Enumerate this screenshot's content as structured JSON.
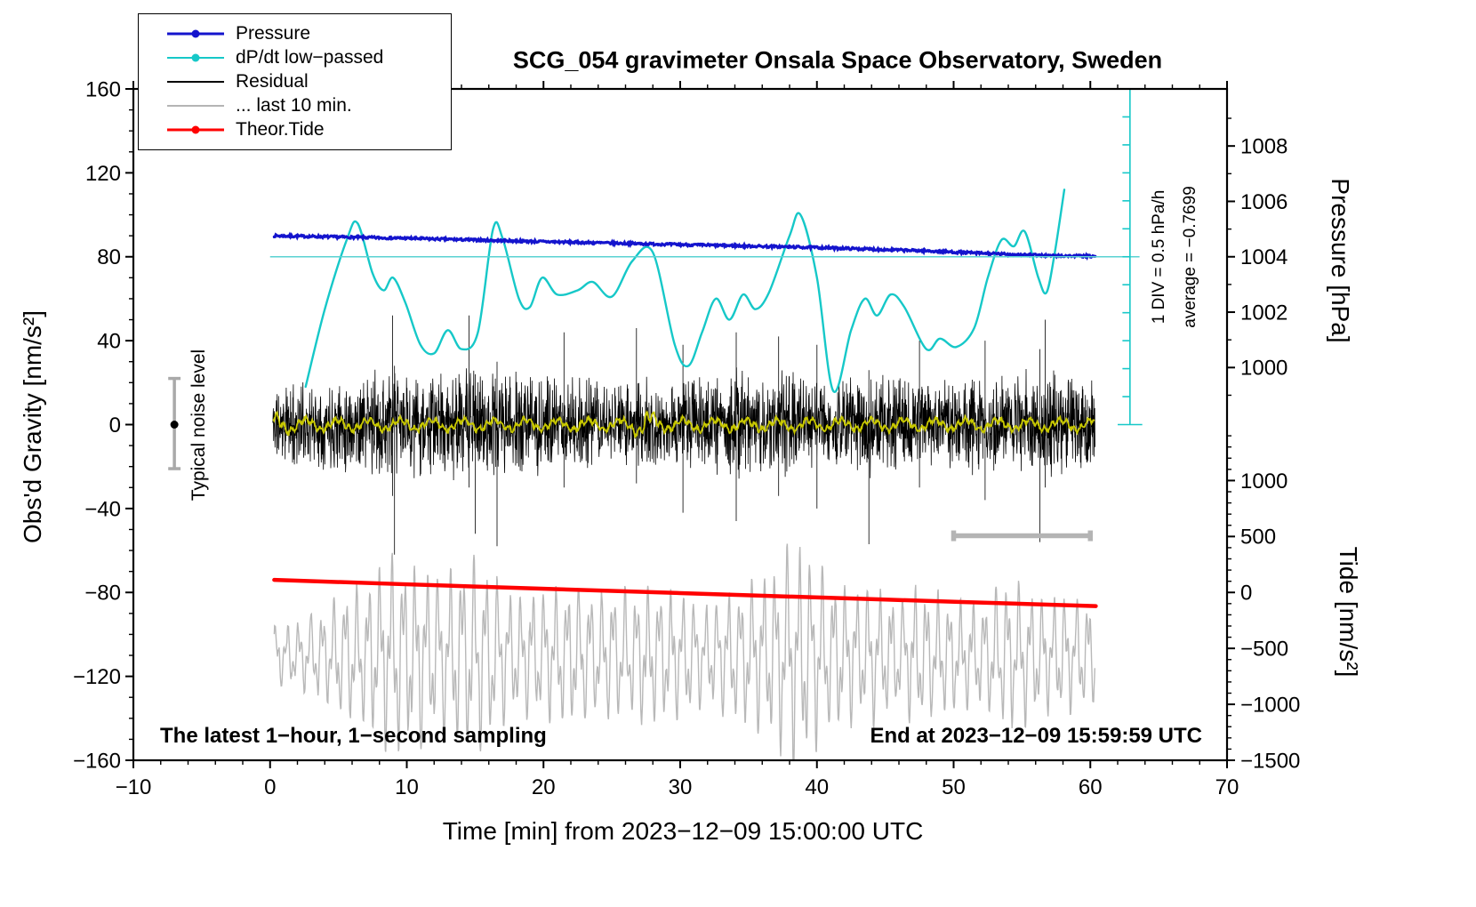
{
  "chart_data": {
    "type": "line",
    "title": "SCG_054 gravimeter Onsala Space Observatory, Sweden",
    "xlabel": "Time [min] from 2023−12−09 15:00:00 UTC",
    "ylabel_left": "Obs'd Gravity [nm/s²]",
    "ylabel_right_top": "Pressure [hPa]",
    "ylabel_right_bottom": "Tide [nm/s²]",
    "xlim": [
      -10,
      70
    ],
    "ylim": [
      -160,
      160
    ],
    "grid": false,
    "legend_position": "top-left",
    "x_ticks": [
      {
        "v": -10,
        "label": "−10"
      },
      {
        "v": 0,
        "label": "0"
      },
      {
        "v": 10,
        "label": "10"
      },
      {
        "v": 20,
        "label": "20"
      },
      {
        "v": 30,
        "label": "30"
      },
      {
        "v": 40,
        "label": "40"
      },
      {
        "v": 50,
        "label": "50"
      },
      {
        "v": 60,
        "label": "60"
      },
      {
        "v": 70,
        "label": "70"
      }
    ],
    "x_minor_step": 2,
    "y_ticks_left": [
      {
        "v": -160,
        "label": "−160"
      },
      {
        "v": -120,
        "label": "−120"
      },
      {
        "v": -80,
        "label": "−80"
      },
      {
        "v": -40,
        "label": "−40"
      },
      {
        "v": 0,
        "label": "0"
      },
      {
        "v": 40,
        "label": "40"
      },
      {
        "v": 80,
        "label": "80"
      },
      {
        "v": 120,
        "label": "120"
      },
      {
        "v": 160,
        "label": "160"
      }
    ],
    "y_minor_step": 10,
    "pressure_axis": {
      "ref_p": 1004,
      "ref_g": 80,
      "g_per_hpa": 13.2,
      "majors": [
        {
          "v": 1008,
          "label": "1008"
        },
        {
          "v": 1006,
          "label": "1006"
        },
        {
          "v": 1004,
          "label": "1004"
        },
        {
          "v": 1002,
          "label": "1002"
        },
        {
          "v": 1000,
          "label": "1000"
        }
      ],
      "minors": [
        1009,
        1007,
        1005,
        1003,
        1001,
        999
      ]
    },
    "tide_axis": {
      "ref_t": 0,
      "ref_g": -80,
      "g_per_unit": 0.0533333,
      "majors": [
        {
          "v": 1000,
          "label": "1000"
        },
        {
          "v": 500,
          "label": "500"
        },
        {
          "v": 0,
          "label": "0"
        },
        {
          "v": -500,
          "label": "−500"
        },
        {
          "v": -1000,
          "label": "−1000"
        },
        {
          "v": -1500,
          "label": "−1500"
        }
      ],
      "minors": [
        1400,
        1300,
        1200,
        1100,
        900,
        800,
        700,
        600,
        400,
        300,
        200,
        100,
        -100,
        -200,
        -300,
        -400,
        -600,
        -700,
        -800,
        -900,
        -1100,
        -1200,
        -1300,
        -1400
      ]
    },
    "legend": [
      {
        "label": "Pressure",
        "color": "#1414cd",
        "width": 3.5,
        "marker": true
      },
      {
        "label": "dP/dt low−passed",
        "color": "#16c8c8",
        "width": 2.4,
        "marker": true
      },
      {
        "label": "Residual",
        "color": "#000000",
        "width": 2.6,
        "marker": false
      },
      {
        "label": "... last 10 min.",
        "color": "#b4b4b4",
        "width": 2.6,
        "marker": false
      },
      {
        "label": "Theor.Tide",
        "color": "#ff0000",
        "width": 3.5,
        "marker": true
      }
    ],
    "annotations": {
      "noise_label": "Typical noise level",
      "div_label": "1 DIV = 0.5 hPa/h",
      "average_label": "average = −0.7699",
      "note_left": "The latest 1−hour, 1−second sampling",
      "note_right": "End at 2023−12−09 15:59:59 UTC"
    },
    "series": {
      "baseline80": {
        "y": 80,
        "x0": 0,
        "x1": 63.6,
        "color": "#5ad2d2",
        "width": 1.4
      },
      "ruler": {
        "x": 62.9,
        "g0": 0,
        "g1": 160,
        "divisions": 12,
        "tick_len": 0.55,
        "cap_half": 0.9,
        "color": "#16c8c8",
        "width": 1.6
      },
      "pressure": {
        "color": "#1414cd",
        "width": 3.2,
        "seed": 7,
        "jitter": 1.1,
        "step": 0.06,
        "keypoints": [
          [
            0.3,
            90
          ],
          [
            10,
            88.8
          ],
          [
            20,
            87.2
          ],
          [
            30,
            85.8
          ],
          [
            40,
            84.4
          ],
          [
            48,
            82.8
          ],
          [
            53,
            81.4
          ],
          [
            57,
            80.5
          ],
          [
            60.4,
            80.2
          ]
        ]
      },
      "dpdt": {
        "color": "#16c8c8",
        "width": 2.4,
        "keypoints": [
          [
            2.6,
            18
          ],
          [
            4,
            55
          ],
          [
            5.6,
            88
          ],
          [
            6.4,
            96
          ],
          [
            7.5,
            72
          ],
          [
            8.3,
            64
          ],
          [
            9,
            70
          ],
          [
            9.9,
            58
          ],
          [
            11,
            38
          ],
          [
            12,
            34
          ],
          [
            13,
            45
          ],
          [
            14,
            36
          ],
          [
            15.2,
            44
          ],
          [
            16.3,
            93
          ],
          [
            17,
            89
          ],
          [
            18.2,
            60
          ],
          [
            19,
            56
          ],
          [
            19.9,
            70
          ],
          [
            21,
            62
          ],
          [
            22.5,
            64
          ],
          [
            23.6,
            68
          ],
          [
            25,
            61
          ],
          [
            26.5,
            78
          ],
          [
            28,
            82
          ],
          [
            29.6,
            38
          ],
          [
            30.6,
            28
          ],
          [
            31.6,
            44
          ],
          [
            32.6,
            60
          ],
          [
            33.6,
            50
          ],
          [
            34.6,
            62
          ],
          [
            35.5,
            55
          ],
          [
            36.5,
            63
          ],
          [
            38,
            90
          ],
          [
            38.8,
            100
          ],
          [
            40,
            70
          ],
          [
            41.2,
            16
          ],
          [
            42.5,
            45
          ],
          [
            43.5,
            60
          ],
          [
            44.4,
            52
          ],
          [
            45.4,
            62
          ],
          [
            46.4,
            56
          ],
          [
            48,
            36
          ],
          [
            49,
            41
          ],
          [
            50.2,
            37
          ],
          [
            51.5,
            46
          ],
          [
            52.5,
            70
          ],
          [
            53.5,
            88
          ],
          [
            54.4,
            85
          ],
          [
            55.2,
            92
          ],
          [
            56.2,
            70
          ],
          [
            56.8,
            63
          ],
          [
            57.4,
            82
          ],
          [
            58.1,
            112
          ]
        ]
      },
      "residual": {
        "color": "#000000",
        "width": 0.8,
        "seed": 11,
        "step": 0.02,
        "x0": 0.2,
        "x1": 60.35,
        "envelope": [
          [
            0.3,
            16
          ],
          [
            3,
            18
          ],
          [
            6,
            20
          ],
          [
            9,
            24
          ],
          [
            11,
            20
          ],
          [
            13,
            22
          ],
          [
            15,
            24
          ],
          [
            17,
            22
          ],
          [
            20,
            20
          ],
          [
            22,
            22
          ],
          [
            25,
            18
          ],
          [
            27,
            21
          ],
          [
            29,
            18
          ],
          [
            32,
            20
          ],
          [
            34,
            23
          ],
          [
            36,
            20
          ],
          [
            39,
            22
          ],
          [
            41,
            18
          ],
          [
            44,
            21
          ],
          [
            46,
            20
          ],
          [
            49,
            18
          ],
          [
            52,
            21
          ],
          [
            54,
            20
          ],
          [
            56,
            24
          ],
          [
            58,
            22
          ],
          [
            60.3,
            19
          ]
        ],
        "spikes": [
          {
            "x": 8.95,
            "hi": 52,
            "lo": -34
          },
          {
            "x": 9.1,
            "hi": 28,
            "lo": -62
          },
          {
            "x": 14.55,
            "hi": 52,
            "lo": -30
          },
          {
            "x": 15.0,
            "hi": 24,
            "lo": -52
          },
          {
            "x": 16.6,
            "hi": 30,
            "lo": -58
          },
          {
            "x": 21.5,
            "hi": 44,
            "lo": -30
          },
          {
            "x": 26.8,
            "hi": 46,
            "lo": -28
          },
          {
            "x": 30.2,
            "hi": 38,
            "lo": -42
          },
          {
            "x": 34.1,
            "hi": 44,
            "lo": -46
          },
          {
            "x": 37.2,
            "hi": 42,
            "lo": -34
          },
          {
            "x": 40.0,
            "hi": 38,
            "lo": -40
          },
          {
            "x": 43.8,
            "hi": 26,
            "lo": -57
          },
          {
            "x": 47.5,
            "hi": 40,
            "lo": -30
          },
          {
            "x": 52.3,
            "hi": 40,
            "lo": -36
          },
          {
            "x": 56.3,
            "hi": 36,
            "lo": -56
          },
          {
            "x": 56.7,
            "hi": 50,
            "lo": -30
          }
        ]
      },
      "lowpass": {
        "color": "#c8c800",
        "width": 1.8,
        "seed": 5,
        "step": 0.04,
        "x0": 0.2,
        "x1": 60.35,
        "base_amp1": 2.3,
        "period1": 2.3,
        "base_amp2": 1.2,
        "period2": 0.53,
        "noise": 1.6,
        "envelope": [
          [
            0.3,
            1.7
          ],
          [
            3,
            1
          ],
          [
            26,
            1
          ],
          [
            27.5,
            2.3
          ],
          [
            29,
            1
          ],
          [
            60.4,
            1
          ]
        ]
      },
      "last10": {
        "color": "#b8b8b8",
        "width": 1.4,
        "seed": 23,
        "step": 0.03,
        "x0": 0.3,
        "x1": 60.35,
        "center": -110,
        "p1": 0.85,
        "p2": 0.33,
        "envelope": [
          [
            0.3,
            12
          ],
          [
            2,
            14
          ],
          [
            4,
            20
          ],
          [
            5,
            26
          ],
          [
            7,
            30
          ],
          [
            9,
            44
          ],
          [
            10,
            40
          ],
          [
            11,
            38
          ],
          [
            12,
            34
          ],
          [
            13,
            36
          ],
          [
            14,
            40
          ],
          [
            15,
            42
          ],
          [
            16,
            38
          ],
          [
            17,
            30
          ],
          [
            18,
            25
          ],
          [
            20,
            28
          ],
          [
            22,
            30
          ],
          [
            24,
            26
          ],
          [
            26,
            28
          ],
          [
            28,
            30
          ],
          [
            30,
            26
          ],
          [
            32,
            22
          ],
          [
            34,
            28
          ],
          [
            36,
            34
          ],
          [
            38,
            46
          ],
          [
            39,
            48
          ],
          [
            40,
            40
          ],
          [
            41,
            32
          ],
          [
            42,
            30
          ],
          [
            43,
            28
          ],
          [
            44,
            30
          ],
          [
            45,
            26
          ],
          [
            46,
            24
          ],
          [
            47,
            30
          ],
          [
            48,
            28
          ],
          [
            50,
            24
          ],
          [
            52,
            22
          ],
          [
            53,
            28
          ],
          [
            54,
            32
          ],
          [
            55,
            30
          ],
          [
            56,
            26
          ],
          [
            57,
            24
          ],
          [
            58,
            26
          ],
          [
            59,
            24
          ],
          [
            60.3,
            22
          ]
        ]
      },
      "tide": {
        "color": "#ff0000",
        "width": 4.5,
        "keypoints": [
          [
            0.3,
            -74
          ],
          [
            15,
            -77.2
          ],
          [
            30,
            -80.3
          ],
          [
            45,
            -83.4
          ],
          [
            60.4,
            -86.5
          ]
        ]
      }
    },
    "noise_bar": {
      "x": -7,
      "y_lo": -21,
      "y_hi": 22,
      "dot_y": 0,
      "cap_half": 0.45,
      "color": "#a9a9a9",
      "dot_color": "#000000"
    },
    "scale_bar": {
      "x0": 50,
      "x1": 60,
      "y": -53,
      "cap": 4,
      "color": "#b4b4b4",
      "width": 5.5
    }
  }
}
